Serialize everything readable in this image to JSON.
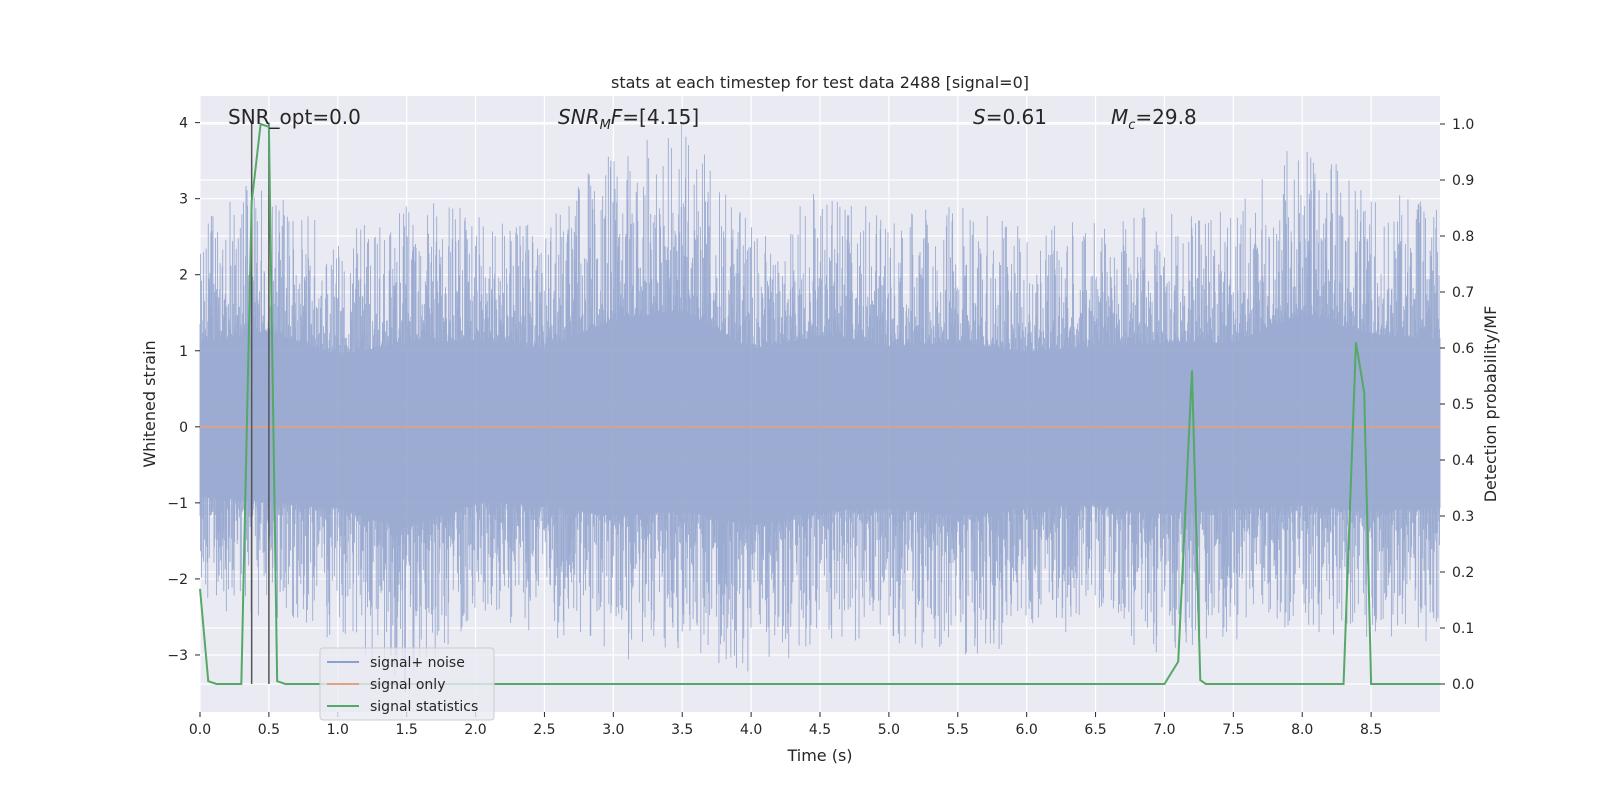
{
  "chart_data": {
    "type": "line",
    "title": "stats at each timestep for test data 2488 [signal=0]",
    "xlabel": "Time (s)",
    "ylabel_left": "Whitened strain",
    "ylabel_right": "Detection probability/MF",
    "xlim": [
      0.0,
      9.0
    ],
    "ylim_left": [
      -3.75,
      4.35
    ],
    "ylim_right": [
      -0.05,
      1.05
    ],
    "x_ticks": [
      "0.0",
      "0.5",
      "1.0",
      "1.5",
      "2.0",
      "2.5",
      "3.0",
      "3.5",
      "4.0",
      "4.5",
      "5.0",
      "5.5",
      "6.0",
      "6.5",
      "7.0",
      "7.5",
      "8.0",
      "8.5"
    ],
    "y_ticks_left": [
      "−3",
      "−2",
      "−1",
      "0",
      "1",
      "2",
      "3",
      "4"
    ],
    "y_ticks_right": [
      "0.0",
      "0.1",
      "0.2",
      "0.3",
      "0.4",
      "0.5",
      "0.6",
      "0.7",
      "0.8",
      "0.9",
      "1.0"
    ],
    "grid": true,
    "legend_position": "lower-left",
    "legend": [
      "signal+ noise",
      "signal only",
      "signal statistics"
    ],
    "colors": {
      "noise": "#8da0cb",
      "signal_only": "#e5a07c",
      "statistics": "#55a868",
      "vlines": "#555555",
      "background": "#eaeaf2"
    },
    "annotations": {
      "snr_opt": "SNR_opt=0.0",
      "snr_mf": "=[4.15]",
      "s_value": "=0.61",
      "mc_value": "=29.8"
    },
    "vertical_lines_x": [
      0.375,
      0.5
    ],
    "series": [
      {
        "name": "signal+ noise",
        "envelope_x": [
          0.0,
          0.5,
          1.0,
          1.5,
          2.0,
          2.5,
          3.0,
          3.5,
          4.0,
          4.5,
          5.0,
          5.5,
          6.0,
          6.5,
          7.0,
          7.5,
          8.0,
          8.5,
          9.0
        ],
        "envelope_max": [
          2.9,
          3.3,
          2.5,
          2.9,
          3.0,
          2.7,
          3.7,
          4.0,
          2.7,
          3.1,
          2.8,
          2.9,
          2.6,
          2.8,
          2.9,
          2.9,
          3.9,
          3.2,
          3.0
        ],
        "envelope_min": [
          -2.4,
          -2.6,
          -2.8,
          -3.5,
          -2.6,
          -2.7,
          -3.1,
          -2.9,
          -3.4,
          -2.9,
          -2.8,
          -3.1,
          -2.8,
          -2.7,
          -3.0,
          -2.8,
          -2.7,
          -2.9,
          -2.8
        ]
      },
      {
        "name": "signal only",
        "x": [
          0.0,
          9.0
        ],
        "y": [
          0.0,
          0.0
        ]
      },
      {
        "name": "signal statistics",
        "x": [
          0.0,
          0.06,
          0.12,
          0.3,
          0.375,
          0.44,
          0.5,
          0.56,
          0.62,
          1.0,
          7.0,
          7.1,
          7.2,
          7.26,
          7.3,
          8.3,
          8.39,
          8.45,
          8.5,
          9.0
        ],
        "y": [
          0.17,
          0.005,
          0.0,
          0.0,
          0.86,
          1.0,
          0.995,
          0.005,
          0.0,
          0.0,
          0.0,
          0.04,
          0.56,
          0.007,
          0.0,
          0.0,
          0.61,
          0.52,
          0.0,
          0.0
        ]
      }
    ]
  }
}
